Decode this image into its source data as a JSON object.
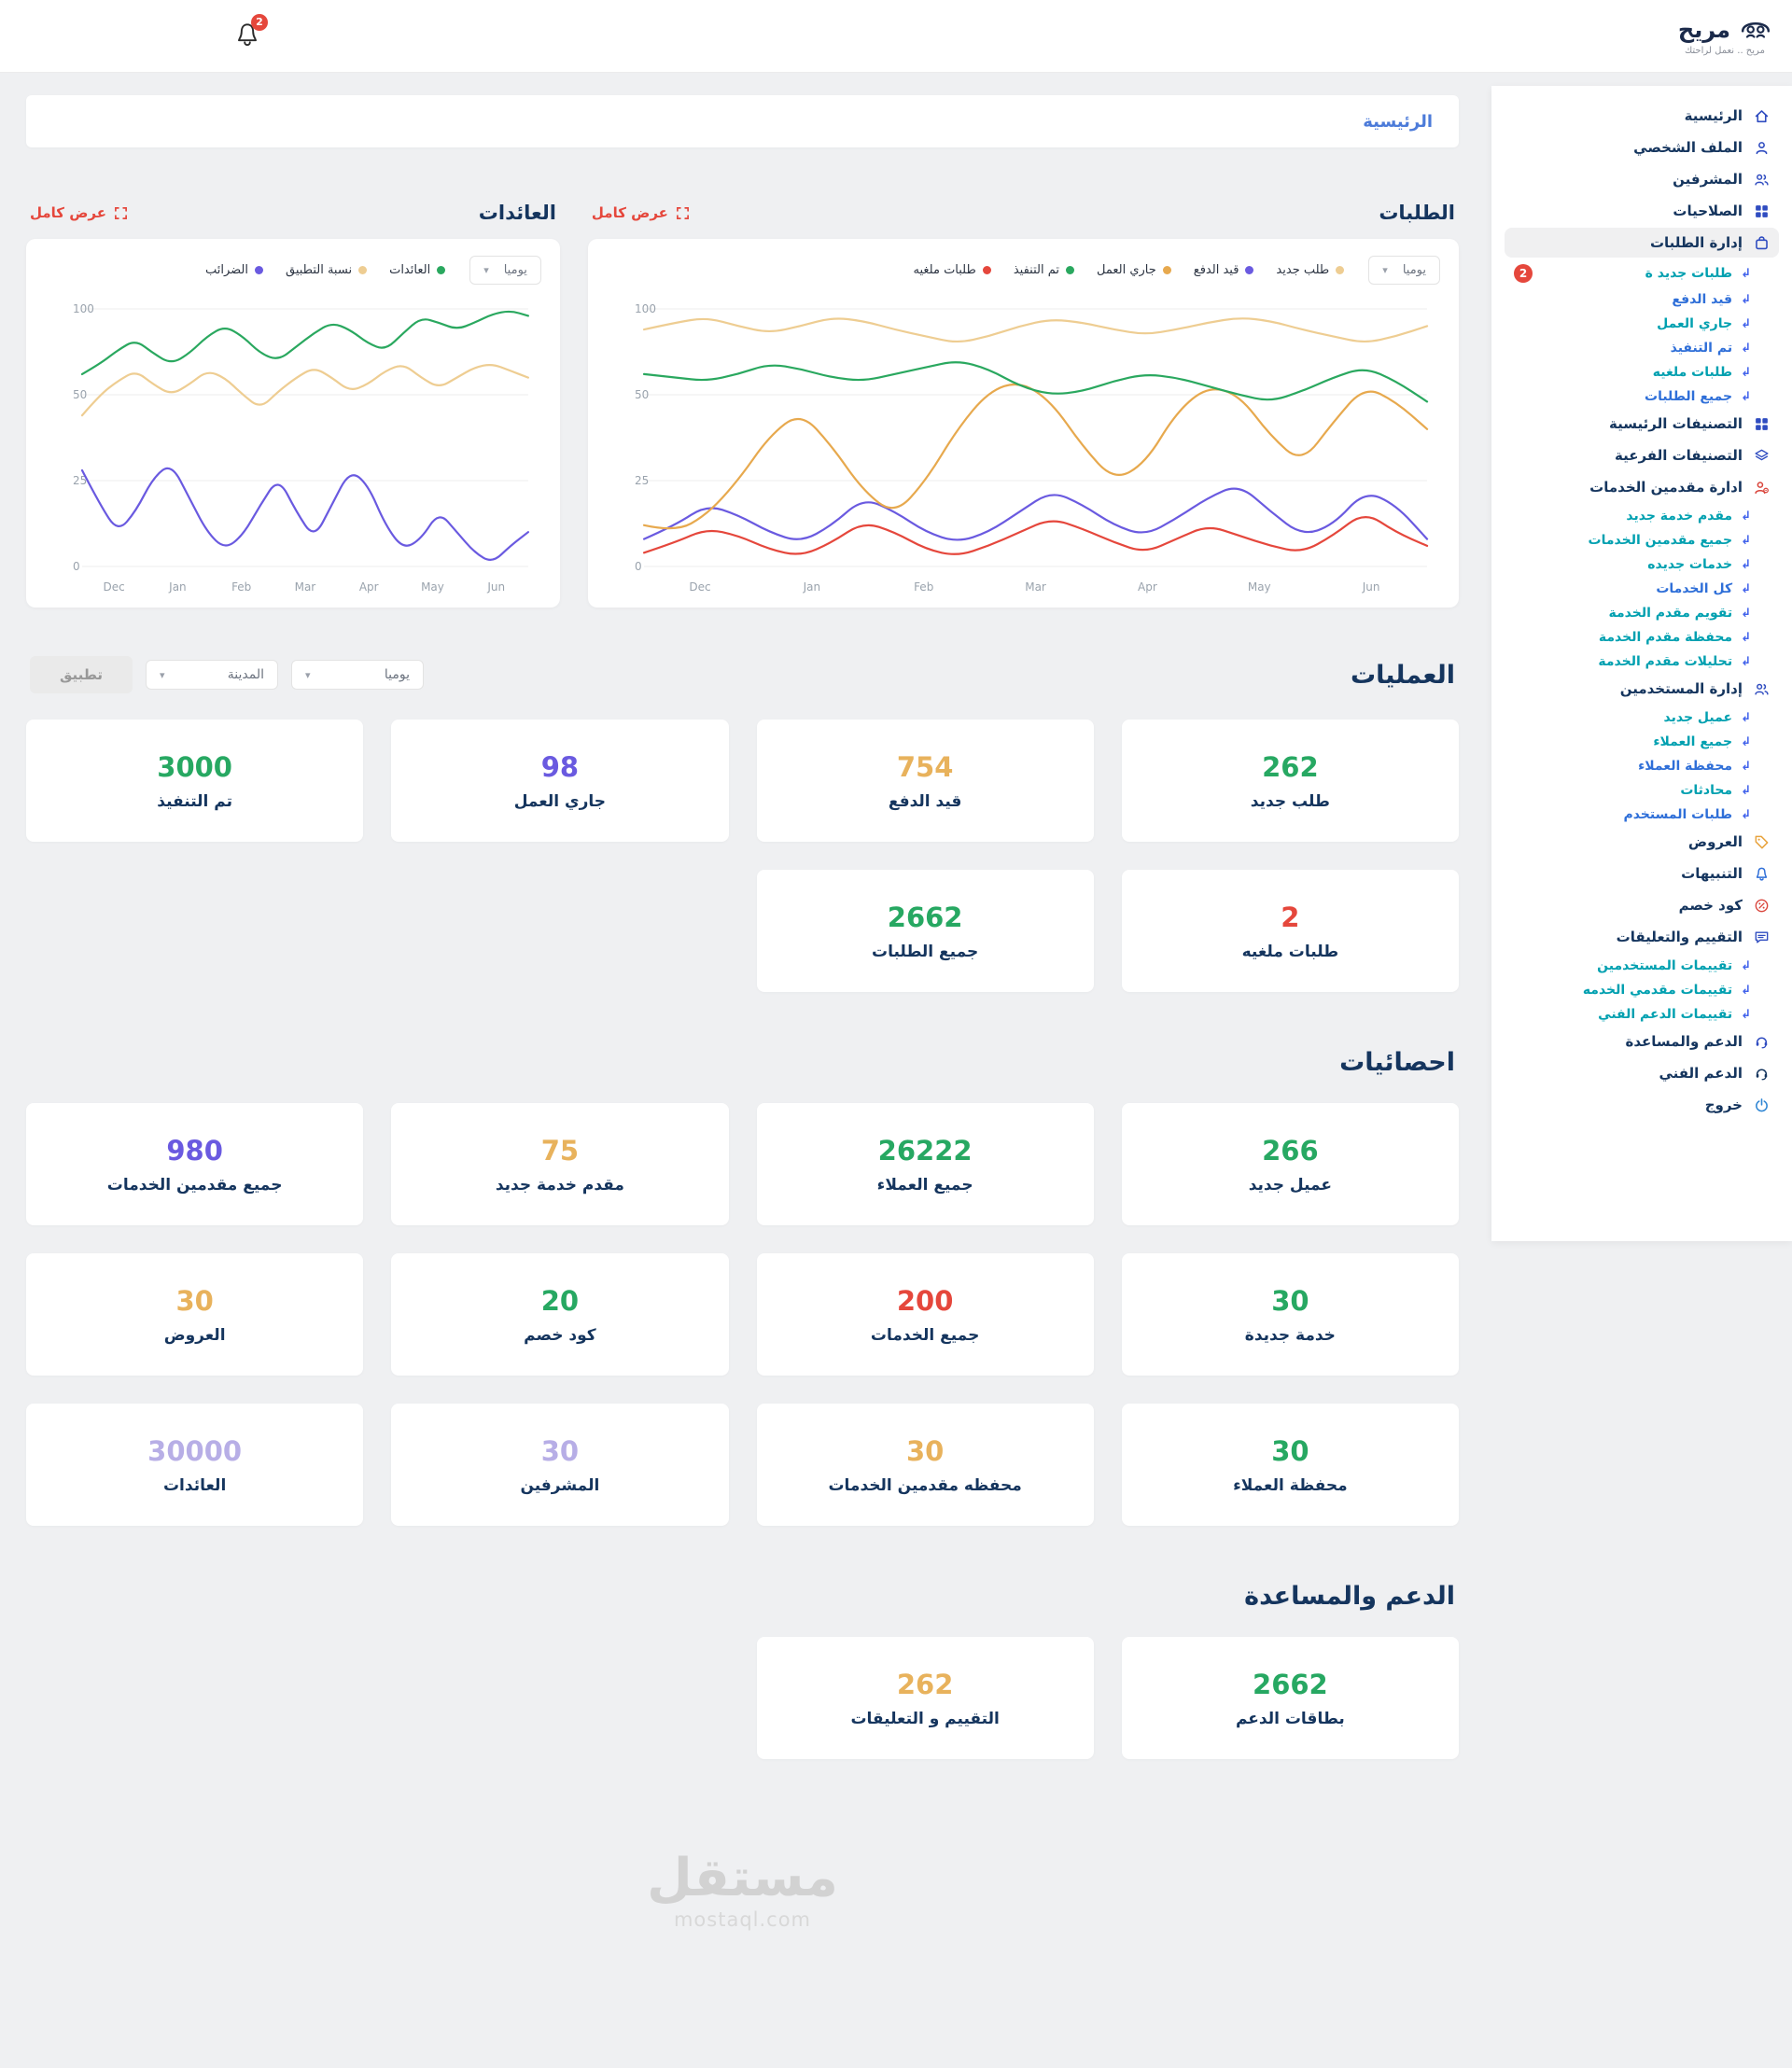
{
  "colors": {
    "green": "#27a862",
    "yellow": "#e8b25c",
    "purple": "#6a5ae0",
    "red": "#e5473c",
    "lavender": "#b7aee6"
  },
  "topbar": {
    "brand": "مريح",
    "tagline": "مريح .. نعمل لراحتك",
    "notifications": "2"
  },
  "breadcrumb": "الرئيسية",
  "sidebar": {
    "items": [
      {
        "label": "الرئيسية",
        "icon": "home-icon",
        "color": "#2f4cc0"
      },
      {
        "label": "الملف الشخصي",
        "icon": "user-icon",
        "color": "#2f4cc0"
      },
      {
        "label": "المشرفين",
        "icon": "users-icon",
        "color": "#2f4cc0"
      },
      {
        "label": "الصلاحيات",
        "icon": "grid-icon",
        "color": "#2f4cc0"
      },
      {
        "label": "إدارة الطلبات",
        "icon": "bag-icon",
        "color": "#2f4cc0",
        "active": true,
        "children": [
          {
            "label": "طلبات جديد ة",
            "color": "#00a0b0",
            "badge": "2"
          },
          {
            "label": "قيد الدفع",
            "color": "#2f6fd8"
          },
          {
            "label": "جاري العمل",
            "color": "#00a0b0"
          },
          {
            "label": "تم التنفيذ",
            "color": "#2f6fd8"
          },
          {
            "label": "طلبات ملغيه",
            "color": "#00a0b0"
          },
          {
            "label": "جميع الطلبات",
            "color": "#2f6fd8"
          }
        ]
      },
      {
        "label": "التصنيفات الرئيسية",
        "icon": "grid-icon",
        "color": "#2f4cc0"
      },
      {
        "label": "التصنيفات الفرعية",
        "icon": "layers-icon",
        "color": "#2f4cc0"
      },
      {
        "label": "ادارة مقدمين الخدمات",
        "icon": "user-gear-icon",
        "color": "#d9453c",
        "children": [
          {
            "label": "مقدم خدمة جديد",
            "color": "#00a0b0"
          },
          {
            "label": "جميع مقدمين الخدمات",
            "color": "#00a0b0"
          },
          {
            "label": "خدمات جديده",
            "color": "#00a0b0"
          },
          {
            "label": "كل الخدمات",
            "color": "#2f6fd8"
          },
          {
            "label": "تقويم مقدم الخدمة",
            "color": "#00a0b0"
          },
          {
            "label": "محفظة مقدم الخدمة",
            "color": "#00a0b0"
          },
          {
            "label": "تحليلات مقدم الخدمة",
            "color": "#00a0b0"
          }
        ]
      },
      {
        "label": "إدارة المستخدمين",
        "icon": "users-icon",
        "color": "#2f4cc0",
        "children": [
          {
            "label": "عميل جديد",
            "color": "#00a0b0"
          },
          {
            "label": "جميع العملاء",
            "color": "#00a0b0"
          },
          {
            "label": "محفظة العملاء",
            "color": "#2f6fd8"
          },
          {
            "label": "محادثات",
            "color": "#00a0b0"
          },
          {
            "label": "طلبات المستخدم",
            "color": "#2f6fd8"
          }
        ]
      },
      {
        "label": "العروض",
        "icon": "tag-icon",
        "color": "#e8a33d"
      },
      {
        "label": "التنبيهات",
        "icon": "bell-icon",
        "color": "#2f6fd8"
      },
      {
        "label": "كود خصم",
        "icon": "discount-icon",
        "color": "#d9453c"
      },
      {
        "label": "التقييم والتعليقات",
        "icon": "chat-icon",
        "color": "#2f4cc0",
        "children": [
          {
            "label": "تقييمات المستخدمين",
            "color": "#00a0b0"
          },
          {
            "label": "تقييمات مقدمي الخدمه",
            "color": "#00a0b0"
          },
          {
            "label": "تقييمات الدعم الفني",
            "color": "#00a0b0"
          }
        ]
      },
      {
        "label": "الدعم والمساعدة",
        "icon": "support-icon",
        "color": "#2f4cc0"
      },
      {
        "label": "الدعم الفني",
        "icon": "headset-icon",
        "color": "#15355e"
      },
      {
        "label": "خروج",
        "icon": "power-icon",
        "color": "#2f86d4"
      }
    ]
  },
  "charts": [
    {
      "title": "الطلبات",
      "view_all_label": "عرض كامل",
      "period": "يوميا",
      "chart_data": {
        "type": "line",
        "x_labels": [
          "Dec",
          "Jan",
          "Feb",
          "Mar",
          "Apr",
          "May",
          "Jun"
        ],
        "y_ticks": [
          100,
          50,
          25,
          0
        ],
        "ylim": [
          0,
          100
        ],
        "grid": true,
        "legend_position": "top",
        "series": [
          {
            "name": "طلب جديد",
            "color": "#eecd92",
            "values": [
              88,
              92,
              95,
              90,
              86,
              90,
              95,
              93,
              88,
              84,
              80,
              84,
              90,
              94,
              92,
              88,
              85,
              88,
              92,
              95,
              93,
              88,
              84,
              80,
              84,
              90
            ]
          },
          {
            "name": "قيد الدفع",
            "color": "#6a5ae0",
            "values": [
              8,
              12,
              18,
              15,
              10,
              7,
              12,
              20,
              16,
              10,
              7,
              10,
              16,
              22,
              18,
              12,
              9,
              14,
              20,
              24,
              16,
              9,
              12,
              22,
              18,
              8
            ]
          },
          {
            "name": "جاري العمل",
            "color": "#e7a94e",
            "values": [
              12,
              10,
              15,
              25,
              38,
              45,
              35,
              22,
              15,
              25,
              40,
              52,
              58,
              48,
              35,
              25,
              30,
              45,
              55,
              50,
              38,
              30,
              42,
              55,
              48,
              40
            ]
          },
          {
            "name": "تم التنفيذ",
            "color": "#2aa85f",
            "values": [
              62,
              60,
              58,
              62,
              68,
              65,
              60,
              58,
              62,
              66,
              70,
              65,
              55,
              50,
              52,
              58,
              62,
              60,
              55,
              50,
              48,
              52,
              60,
              66,
              58,
              48
            ]
          },
          {
            "name": "طلبات ملغيه",
            "color": "#e5473c",
            "values": [
              4,
              7,
              11,
              9,
              5,
              3,
              7,
              13,
              10,
              5,
              3,
              6,
              10,
              14,
              11,
              7,
              4,
              8,
              12,
              9,
              6,
              4,
              9,
              16,
              10,
              6
            ]
          }
        ]
      }
    },
    {
      "title": "العائدات",
      "view_all_label": "عرض كامل",
      "period": "يوميا",
      "chart_data": {
        "type": "line",
        "x_labels": [
          "Dec",
          "Jan",
          "Feb",
          "Mar",
          "Apr",
          "May",
          "Jun"
        ],
        "y_ticks": [
          100,
          50,
          25,
          0
        ],
        "ylim": [
          0,
          100
        ],
        "grid": true,
        "legend_position": "top",
        "series": [
          {
            "name": "العائدات",
            "color": "#2aa85f",
            "values": [
              62,
              68,
              76,
              82,
              74,
              68,
              74,
              84,
              90,
              84,
              74,
              70,
              78,
              86,
              92,
              88,
              80,
              76,
              86,
              95,
              92,
              88,
              92,
              97,
              99,
              96
            ]
          },
          {
            "name": "نسبة التطبيق",
            "color": "#eecd92",
            "values": [
              44,
              50,
              58,
              64,
              56,
              50,
              56,
              64,
              60,
              50,
              46,
              52,
              60,
              66,
              60,
              52,
              56,
              64,
              68,
              60,
              54,
              60,
              66,
              68,
              64,
              60
            ]
          },
          {
            "name": "الضرائب",
            "color": "#6a5ae0",
            "values": [
              28,
              18,
              10,
              16,
              26,
              30,
              20,
              10,
              5,
              9,
              18,
              26,
              16,
              8,
              18,
              28,
              24,
              12,
              5,
              8,
              16,
              10,
              4,
              1,
              6,
              10
            ]
          }
        ]
      }
    }
  ],
  "filters": {
    "period": "يوميا",
    "city": "المدينة",
    "apply": "تطبيق"
  },
  "sections": [
    {
      "title": "العمليات",
      "cards": [
        {
          "value": "262",
          "label": "طلب جديد",
          "color": "green"
        },
        {
          "value": "754",
          "label": "قيد الدفع",
          "color": "yellow"
        },
        {
          "value": "98",
          "label": "جاري العمل",
          "color": "purple"
        },
        {
          "value": "3000",
          "label": "تم التنفيذ",
          "color": "green"
        },
        {
          "value": "2",
          "label": "طلبات ملغيه",
          "color": "red"
        },
        {
          "value": "2662",
          "label": "جميع الطلبات",
          "color": "green"
        }
      ]
    },
    {
      "title": "احصائيات",
      "cards": [
        {
          "value": "266",
          "label": "عميل جديد",
          "color": "green"
        },
        {
          "value": "26222",
          "label": "جميع العملاء",
          "color": "green"
        },
        {
          "value": "75",
          "label": "مقدم خدمة جديد",
          "color": "yellow"
        },
        {
          "value": "980",
          "label": "جميع مقدمين الخدمات",
          "color": "purple"
        },
        {
          "value": "30",
          "label": "خدمة جديدة",
          "color": "green"
        },
        {
          "value": "200",
          "label": "جميع الخدمات",
          "color": "red"
        },
        {
          "value": "20",
          "label": "كود خصم",
          "color": "green"
        },
        {
          "value": "30",
          "label": "العروض",
          "color": "yellow"
        },
        {
          "value": "30",
          "label": "محفظة العملاء",
          "color": "green"
        },
        {
          "value": "30",
          "label": "محفظه مقدمين الخدمات",
          "color": "yellow"
        },
        {
          "value": "30",
          "label": "المشرفين",
          "color": "lavender"
        },
        {
          "value": "30000",
          "label": "العائدات",
          "color": "lavender"
        }
      ]
    },
    {
      "title": "الدعم والمساعدة",
      "cards": [
        {
          "value": "2662",
          "label": "بطاقات الدعم",
          "color": "green"
        },
        {
          "value": "262",
          "label": "التقييم و التعليقات",
          "color": "yellow"
        }
      ]
    }
  ],
  "watermark": {
    "arabic": "مستقل",
    "latin": "mostaql.com"
  }
}
